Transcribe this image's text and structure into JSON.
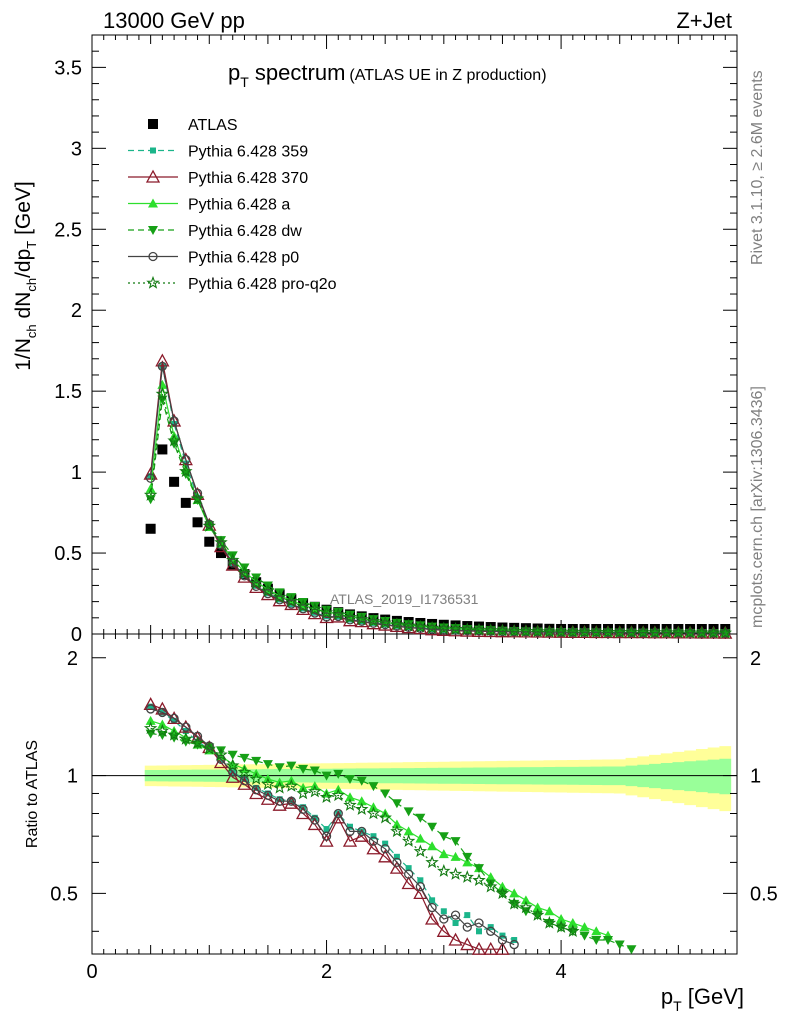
{
  "header": {
    "left": "13000 GeV pp",
    "right": "Z+Jet"
  },
  "title": {
    "main": "p",
    "main_sub": "T",
    "main_rest": " spectrum",
    "detail": "(ATLAS UE in Z production)"
  },
  "side_labels": {
    "rivet": "Rivet 3.1.10, ≥ 2.6M events",
    "mcplots": "mcplots.cern.ch [arXiv:1306.3436]"
  },
  "watermark": "ATLAS_2019_I1736531",
  "axes": {
    "xlabel": "p",
    "xlabel_sub": "T",
    "xlabel_rest": " [GeV]",
    "ylabel_top": "1/N",
    "ylabel_top_sub1": "ch",
    "ylabel_top_mid": " dN",
    "ylabel_top_sub2": "ch",
    "ylabel_top_mid2": "/dp",
    "ylabel_top_sub3": "T",
    "ylabel_top_rest": " [GeV]",
    "ylabel_ratio": "Ratio to ATLAS",
    "x_ticks": [
      "0",
      "2",
      "4"
    ],
    "y_ticks_top": [
      "0",
      "0.5",
      "1",
      "1.5",
      "2",
      "2.5",
      "3",
      "3.5"
    ],
    "y_ticks_ratio": [
      "0.5",
      "1",
      "2"
    ]
  },
  "legend": [
    {
      "label": "ATLAS",
      "color": "#000000",
      "marker": "square",
      "dash": "none"
    },
    {
      "label": "Pythia 6.428 359",
      "color": "#1bb58a",
      "marker": "smallsquare",
      "dash": "dashed"
    },
    {
      "label": "Pythia 6.428 370",
      "color": "#8b1a2a",
      "marker": "opentriangle",
      "dash": "solid"
    },
    {
      "label": "Pythia 6.428 a",
      "color": "#2ddf2d",
      "marker": "triangle",
      "dash": "solid"
    },
    {
      "label": "Pythia 6.428 dw",
      "color": "#16a016",
      "marker": "invtriangle",
      "dash": "dashed"
    },
    {
      "label": "Pythia 6.428 p0",
      "color": "#444444",
      "marker": "opencircle",
      "dash": "solid"
    },
    {
      "label": "Pythia 6.428 pro-q2o",
      "color": "#127a12",
      "marker": "star",
      "dash": "dotted"
    }
  ],
  "chart_data": {
    "type": "line",
    "title": "pT spectrum (ATLAS UE in Z production)",
    "xlabel": "pT [GeV]",
    "ylabel": "1/Nch dNch/dpT [GeV]",
    "xlim": [
      0,
      5.5
    ],
    "ylim": [
      0,
      3.7
    ],
    "ratio_ylim": [
      0.35,
      2.3
    ],
    "ratio_ylabel": "Ratio to ATLAS",
    "ratio_scale": "log",
    "x": [
      0.5,
      0.6,
      0.7,
      0.8,
      0.9,
      1.0,
      1.1,
      1.2,
      1.3,
      1.4,
      1.5,
      1.6,
      1.7,
      1.8,
      1.9,
      2.0,
      2.1,
      2.2,
      2.3,
      2.4,
      2.5,
      2.6,
      2.7,
      2.8,
      2.9,
      3.0,
      3.1,
      3.2,
      3.3,
      3.4,
      3.5,
      3.6,
      3.7,
      3.8,
      3.9,
      4.0,
      4.1,
      4.2,
      4.3,
      4.4,
      4.5,
      4.6,
      4.7,
      4.8,
      4.9,
      5.0,
      5.1,
      5.2,
      5.3,
      5.4
    ],
    "series": [
      {
        "name": "ATLAS",
        "values": [
          0.65,
          1.14,
          0.94,
          0.81,
          0.69,
          0.57,
          0.5,
          0.43,
          0.37,
          0.32,
          0.28,
          0.245,
          0.215,
          0.19,
          0.168,
          0.15,
          0.135,
          0.121,
          0.109,
          0.098,
          0.089,
          0.081,
          0.074,
          0.068,
          0.062,
          0.057,
          0.053,
          0.049,
          0.046,
          0.043,
          0.04,
          0.038,
          0.036,
          0.034,
          0.032,
          0.031,
          0.029,
          0.028,
          0.027,
          0.026,
          0.025,
          0.024,
          0.023,
          0.022,
          0.021,
          0.02,
          0.019,
          0.018,
          0.017,
          0.016
        ]
      },
      {
        "name": "Pythia 6.428 359",
        "ratio": [
          1.5,
          1.45,
          1.38,
          1.3,
          1.22,
          1.17,
          1.1,
          1.02,
          0.98,
          0.93,
          0.9,
          0.87,
          0.86,
          0.83,
          0.78,
          0.73,
          0.8,
          0.74,
          0.72,
          0.7,
          0.67,
          0.62,
          0.58,
          0.54,
          0.48,
          0.45,
          0.42,
          0.44,
          0.4,
          0.41,
          0.39,
          0.38
        ]
      },
      {
        "name": "Pythia 6.428 370",
        "ratio": [
          1.52,
          1.48,
          1.4,
          1.33,
          1.25,
          1.18,
          1.08,
          0.99,
          0.95,
          0.9,
          0.87,
          0.84,
          0.85,
          0.8,
          0.75,
          0.68,
          0.78,
          0.68,
          0.7,
          0.65,
          0.62,
          0.58,
          0.53,
          0.5,
          0.43,
          0.4,
          0.38,
          0.37,
          0.36,
          0.36,
          0.36
        ]
      },
      {
        "name": "Pythia 6.428 a",
        "ratio": [
          1.38,
          1.35,
          1.3,
          1.25,
          1.2,
          1.16,
          1.12,
          1.07,
          1.04,
          1.01,
          0.98,
          0.96,
          0.97,
          0.93,
          0.94,
          0.9,
          0.92,
          0.88,
          0.86,
          0.83,
          0.8,
          0.75,
          0.72,
          0.69,
          0.66,
          0.63,
          0.62,
          0.6,
          0.58,
          0.55,
          0.52,
          0.5,
          0.48,
          0.46,
          0.45,
          0.43,
          0.42,
          0.41,
          0.4,
          0.39
        ]
      },
      {
        "name": "Pythia 6.428 dw",
        "ratio": [
          1.28,
          1.27,
          1.25,
          1.22,
          1.2,
          1.18,
          1.16,
          1.13,
          1.11,
          1.09,
          1.07,
          1.05,
          1.06,
          1.04,
          1.03,
          1.0,
          1.01,
          0.98,
          0.97,
          0.94,
          0.9,
          0.85,
          0.81,
          0.78,
          0.74,
          0.7,
          0.68,
          0.62,
          0.58,
          0.53,
          0.5,
          0.47,
          0.45,
          0.44,
          0.42,
          0.41,
          0.4,
          0.39,
          0.38,
          0.38,
          0.37,
          0.36
        ]
      },
      {
        "name": "Pythia 6.428 p0",
        "ratio": [
          1.48,
          1.45,
          1.4,
          1.33,
          1.26,
          1.19,
          1.1,
          1.02,
          0.97,
          0.92,
          0.89,
          0.86,
          0.86,
          0.82,
          0.77,
          0.7,
          0.8,
          0.72,
          0.72,
          0.68,
          0.65,
          0.6,
          0.56,
          0.52,
          0.46,
          0.43,
          0.44,
          0.41,
          0.42,
          0.4,
          0.38,
          0.37
        ]
      },
      {
        "name": "Pythia 6.428 pro-q2o",
        "ratio": [
          1.32,
          1.3,
          1.27,
          1.24,
          1.21,
          1.17,
          1.13,
          1.06,
          1.02,
          0.98,
          0.95,
          0.93,
          0.94,
          0.9,
          0.91,
          0.88,
          0.89,
          0.84,
          0.82,
          0.8,
          0.78,
          0.72,
          0.68,
          0.64,
          0.6,
          0.57,
          0.56,
          0.55,
          0.54,
          0.52,
          0.5,
          0.47,
          0.46,
          0.44,
          0.42,
          0.41,
          0.4
        ]
      }
    ]
  }
}
